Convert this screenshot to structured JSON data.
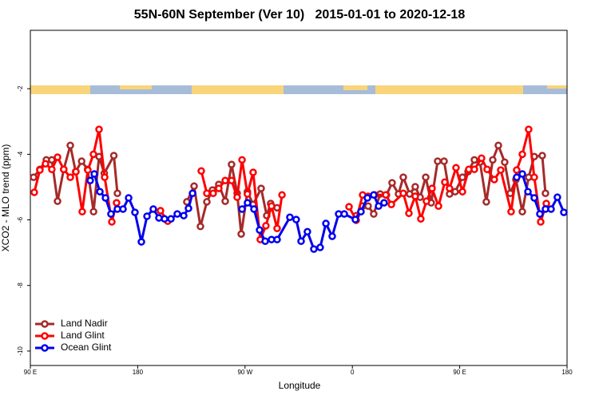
{
  "chart_data": {
    "type": "line",
    "title": "55N-60N September (Ver 10)   2015-01-01 to 2020-12-18",
    "xlabel": "Longitude",
    "ylabel": "XCO2 - MLO trend (ppm)",
    "xlim": [
      90,
      540
    ],
    "xticks": [
      {
        "value": 90,
        "label": "90 E"
      },
      {
        "value": 180,
        "label": "180"
      },
      {
        "value": 270,
        "label": "90 W"
      },
      {
        "value": 360,
        "label": "0"
      },
      {
        "value": 450,
        "label": "90 E"
      },
      {
        "value": 540,
        "label": "180"
      }
    ],
    "ylim": [
      -10.44,
      -0.22
    ],
    "yticks": [
      -2,
      -4,
      -6,
      -8,
      -10
    ],
    "legend": "bottom-left",
    "series": [
      {
        "name": "Land Nadir",
        "color": "#a52a2a",
        "x": [
          92.7,
          98,
          103.4,
          108,
          112.8,
          118,
          123.5,
          128,
          133,
          138,
          143,
          147.6,
          152,
          160,
          163,
          null,
          221.2,
          227.3,
          232.6,
          238,
          242.7,
          248,
          253.4,
          258.7,
          263.4,
          266.8,
          272,
          276.8,
          283.5,
          288.2,
          291.5,
          296.9,
          null,
          363.2,
          368.6,
          373.2,
          377.9,
          383.3,
          388.6,
          393.3,
          398.7,
          402.7,
          408,
          412.7,
          416.8,
          421.5,
          426.1,
          431.5,
          436.9,
          441.5,
          446.2,
          452.3,
          457,
          462.3,
          467,
          472.3,
          477.7,
          482.4,
          487.7,
          492.4,
          497.1,
          502.5,
          507.8,
          512.5,
          519.2,
          521.9
        ],
        "values": [
          -4.7,
          -4.46,
          -4.17,
          -4.17,
          -5.43,
          -4.46,
          -3.73,
          -4.53,
          -4.21,
          -4.46,
          -5.75,
          -4.07,
          -4.58,
          -4.04,
          -5.19,
          null,
          -5.45,
          -4.97,
          -6.2,
          -5.45,
          -5.09,
          -4.92,
          -5.43,
          -4.31,
          -5.19,
          -6.43,
          -5.14,
          -5.53,
          -5.04,
          -5.87,
          -5.5,
          -5.63,
          null,
          -5.87,
          -5.58,
          -5.58,
          -5.82,
          -5.21,
          -5.24,
          -4.87,
          -5.21,
          -4.7,
          -5.21,
          -4.99,
          -5.31,
          -4.7,
          -5.48,
          -4.21,
          -4.21,
          -5.21,
          -5.14,
          -4.7,
          -4.53,
          -4.17,
          -4.24,
          -5.45,
          -4.17,
          -3.73,
          -4.24,
          -5.19,
          -4.77,
          -5.75,
          -4.7,
          -4.07,
          -4.04,
          -5.19
        ]
      },
      {
        "name": "Land Glint",
        "color": "#ff0000",
        "x": [
          93.3,
          98,
          102.7,
          108,
          112.8,
          118,
          123.5,
          128.2,
          133.5,
          138.2,
          142.9,
          147.6,
          152.3,
          158.3,
          162.3,
          null,
          199.1,
          205.2,
          null,
          233.3,
          238,
          243.3,
          248,
          253.4,
          258.7,
          263.4,
          267.5,
          272,
          276.8,
          282.8,
          287.5,
          292.2,
          296.9,
          301,
          null,
          357.2,
          363.2,
          368.6,
          373.2,
          378.6,
          388,
          392.7,
          402.7,
          407.4,
          412.7,
          417.4,
          422.1,
          426.8,
          432.2,
          437.5,
          441.5,
          446.9,
          452.3,
          457.6,
          462.3,
          468.3,
          473,
          479,
          484.4,
          493.1,
          497.8,
          502.5,
          507.8,
          512.5,
          517.9,
          522.6
        ],
        "values": [
          -5.16,
          -4.48,
          -4.29,
          -4.46,
          -4.09,
          -4.46,
          -4.7,
          -4.53,
          -5.75,
          -4.48,
          -4,
          -3.24,
          -4.7,
          -6.06,
          -5.48,
          null,
          -5.72,
          -6.04,
          null,
          -4.51,
          -5.19,
          -5.19,
          -5.04,
          -4.8,
          -4.8,
          -5.31,
          -4.17,
          -5.21,
          -4.55,
          -6.6,
          -6.18,
          -5.58,
          -6.26,
          -5.24,
          null,
          -5.6,
          -6.01,
          -5.24,
          -5.28,
          -5.24,
          -5.24,
          -5.53,
          -5.19,
          -5.8,
          -5.28,
          -5.97,
          -5.43,
          -5.04,
          -5.58,
          -4.85,
          -5.04,
          -4.41,
          -5.14,
          -4.46,
          -4.46,
          -4.12,
          -4.46,
          -4.77,
          -4.48,
          -5.75,
          -4.48,
          -4,
          -3.24,
          -4.7,
          -6.06,
          -5.5
        ]
      },
      {
        "name": "Ocean Glint",
        "color": "#0000ee",
        "x": [
          140.2,
          143.6,
          148.3,
          153,
          157.6,
          163,
          167.7,
          172.4,
          177.7,
          183.1,
          187.8,
          193.1,
          197.8,
          202.5,
          207.9,
          213.2,
          218.6,
          222.6,
          226,
          null,
          267.5,
          272.1,
          277.5,
          282.2,
          286.9,
          292.2,
          296.9,
          307.6,
          312.9,
          317,
          322.3,
          327.7,
          333,
          337.8,
          343.1,
          348.5,
          353.2,
          362.5,
          367.2,
          372.6,
          377.9,
          382,
          386.6,
          null,
          497.8,
          502.5,
          507.2,
          512.5,
          517.2,
          521.9,
          526.6,
          531.9,
          537.3
        ],
        "values": [
          -4.8,
          -4.6,
          -5.14,
          -5.33,
          -5.82,
          -5.67,
          -5.67,
          -5.33,
          -5.77,
          -6.67,
          -5.89,
          -5.67,
          -5.94,
          -5.97,
          -5.97,
          -5.82,
          -5.87,
          -5.65,
          -5.19,
          null,
          -5.67,
          -5.48,
          -5.67,
          -6.31,
          -6.65,
          -6.6,
          -6.6,
          -5.92,
          -5.99,
          -6.65,
          -6.36,
          -6.89,
          -6.84,
          -6.11,
          -6.5,
          -5.82,
          -5.82,
          -5.99,
          -5.75,
          -5.33,
          -5.24,
          -5.58,
          -5.48,
          null,
          -4.7,
          -4.6,
          -5.14,
          -5.33,
          -5.82,
          -5.67,
          -5.67,
          -5.31,
          -5.77
        ]
      }
    ]
  }
}
